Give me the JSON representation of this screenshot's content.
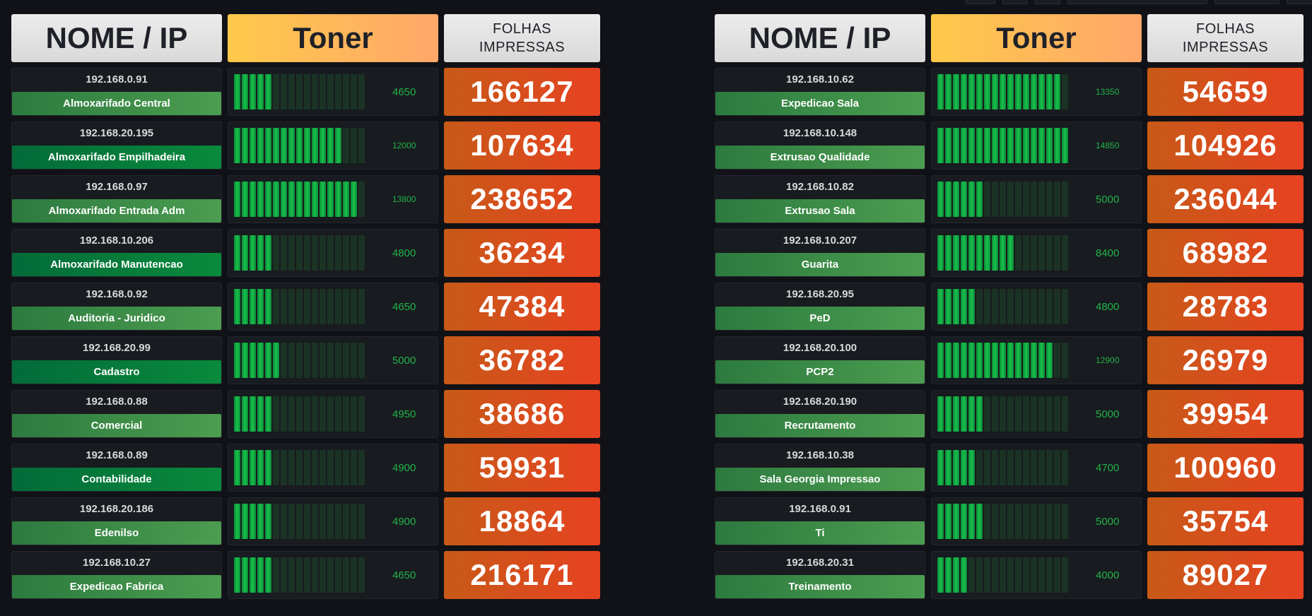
{
  "headers": {
    "name": "NOME / IP",
    "toner": "Toner",
    "folhas": "FOLHAS IMPRESSAS"
  },
  "colors": {
    "background": "#111217",
    "label_green": "#4c9d50",
    "toner_on": "#19c150",
    "toner_off": "#1b3324",
    "count_orange": "#e74221",
    "toner_header": "#ffc94a"
  },
  "left": [
    {
      "ip": "192.168.0.91",
      "name": "Almoxarifado Central",
      "toner": "4650",
      "toner_level": 0.3,
      "count": "166127"
    },
    {
      "ip": "192.168.20.195",
      "name": "Almoxarifado Empilhadeira",
      "toner": "12000",
      "toner_level": 0.82,
      "count": "107634"
    },
    {
      "ip": "192.168.0.97",
      "name": "Almoxarifado Entrada Adm",
      "toner": "13800",
      "toner_level": 0.94,
      "count": "238652"
    },
    {
      "ip": "192.168.10.206",
      "name": "Almoxarifado Manutencao",
      "toner": "4800",
      "toner_level": 0.3,
      "count": "36234"
    },
    {
      "ip": "192.168.0.92",
      "name": "Auditoria - Juridico",
      "toner": "4650",
      "toner_level": 0.3,
      "count": "47384"
    },
    {
      "ip": "192.168.20.99",
      "name": "Cadastro",
      "toner": "5000",
      "toner_level": 0.36,
      "count": "36782"
    },
    {
      "ip": "192.168.0.88",
      "name": "Comercial",
      "toner": "4950",
      "toner_level": 0.3,
      "count": "38686"
    },
    {
      "ip": "192.168.0.89",
      "name": "Contabilidade",
      "toner": "4900",
      "toner_level": 0.3,
      "count": "59931"
    },
    {
      "ip": "192.168.20.186",
      "name": "Edenilso",
      "toner": "4900",
      "toner_level": 0.3,
      "count": "18864"
    },
    {
      "ip": "192.168.10.27",
      "name": "Expedicao Fabrica",
      "toner": "4650",
      "toner_level": 0.3,
      "count": "216171"
    }
  ],
  "right": [
    {
      "ip": "192.168.10.62",
      "name": "Expedicao Sala",
      "toner": "13350",
      "toner_level": 0.94,
      "count": "54659"
    },
    {
      "ip": "192.168.10.148",
      "name": "Extrusao Qualidade",
      "toner": "14850",
      "toner_level": 1.0,
      "count": "104926"
    },
    {
      "ip": "192.168.10.82",
      "name": "Extrusao Sala",
      "toner": "5000",
      "toner_level": 0.36,
      "count": "236044"
    },
    {
      "ip": "192.168.10.207",
      "name": "Guarita",
      "toner": "8400",
      "toner_level": 0.6,
      "count": "68982"
    },
    {
      "ip": "192.168.20.95",
      "name": "PeD",
      "toner": "4800",
      "toner_level": 0.3,
      "count": "28783"
    },
    {
      "ip": "192.168.20.100",
      "name": "PCP2",
      "toner": "12900",
      "toner_level": 0.88,
      "count": "26979"
    },
    {
      "ip": "192.168.20.190",
      "name": "Recrutamento",
      "toner": "5000",
      "toner_level": 0.36,
      "count": "39954"
    },
    {
      "ip": "192.168.10.38",
      "name": "Sala Georgia Impressao",
      "toner": "4700",
      "toner_level": 0.3,
      "count": "100960"
    },
    {
      "ip": "192.168.0.91",
      "name": "Ti",
      "toner": "5000",
      "toner_level": 0.36,
      "count": "35754"
    },
    {
      "ip": "192.168.20.31",
      "name": "Treinamento",
      "toner": "4000",
      "toner_level": 0.24,
      "count": "89027"
    }
  ]
}
